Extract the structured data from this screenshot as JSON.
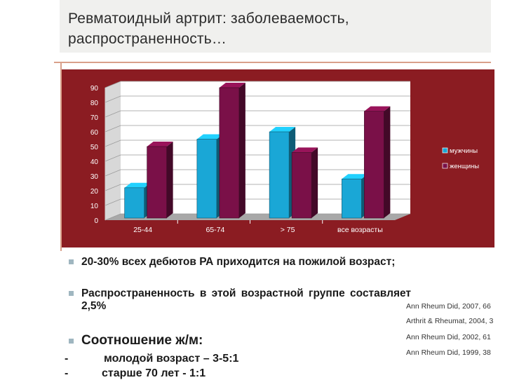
{
  "title": "Ревматоидный артрит: заболеваемость, распространенность…",
  "chart_data": {
    "type": "bar",
    "categories": [
      "25-44",
      "65-74",
      "> 75",
      "все возрасты"
    ],
    "series": [
      {
        "name": "мужчины",
        "values": [
          22,
          55,
          60,
          28
        ],
        "color": "#1aa7d6"
      },
      {
        "name": "женщины",
        "values": [
          50,
          90,
          46,
          74
        ],
        "color": "#7a1048"
      }
    ],
    "ylim": [
      0,
      90
    ],
    "yticks": [
      "0",
      "10",
      "20",
      "30",
      "40",
      "50",
      "60",
      "70",
      "80",
      "90"
    ],
    "title": "",
    "xlabel": "",
    "ylabel": "",
    "legend_position": "right",
    "colors": {
      "panel": "#8b1c22",
      "plot": "#ffffff",
      "floor": "#a8a8a8"
    }
  },
  "bullets": [
    {
      "text": "20-30% всех дебютов РА приходится на пожилой возраст;"
    },
    {
      "text": "Распространенность в этой возрастной группе составляет 2,5%"
    },
    {
      "text": "Соотношение ж/м:"
    }
  ],
  "subitems": [
    {
      "dash": "-",
      "text": "молодой возраст – 3-5:1"
    },
    {
      "dash": "-",
      "text": "старше 70 лет - 1:1"
    }
  ],
  "references": [
    "Ann Rheum Did, 2007, 66",
    "Arthrit & Rheumat, 2004, 3",
    "Ann Rheum Did, 2002, 61",
    "Ann Rheum Did, 1999, 38"
  ]
}
